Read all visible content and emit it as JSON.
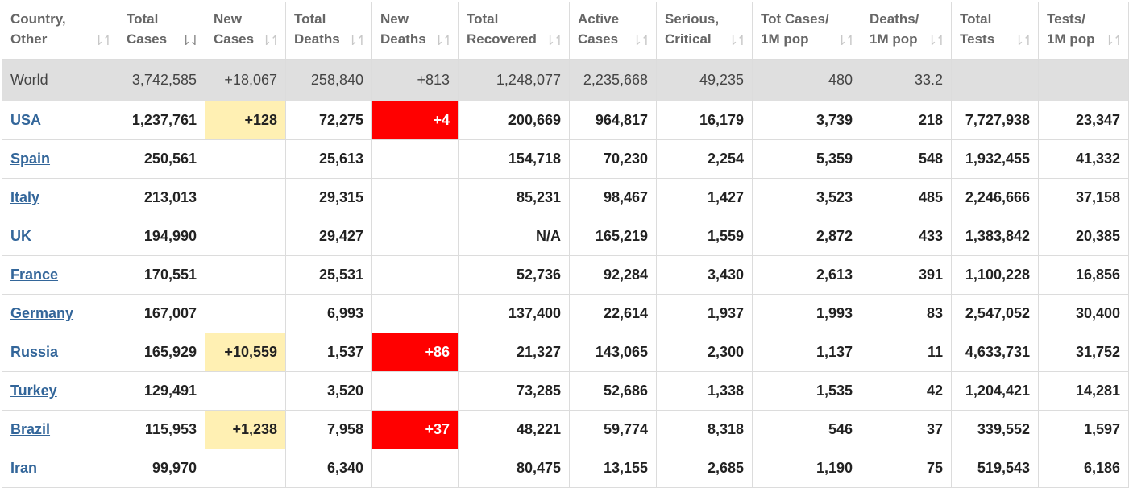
{
  "headers": [
    {
      "label": "Country,\nOther",
      "sort": "⇂↿"
    },
    {
      "label": "Total\nCases",
      "sort": "⇂⇃"
    },
    {
      "label": "New\nCases",
      "sort": "⇂↿"
    },
    {
      "label": "Total\nDeaths",
      "sort": "⇂↿"
    },
    {
      "label": "New\nDeaths",
      "sort": "⇂↿"
    },
    {
      "label": "Total\nRecovered",
      "sort": "⇂↿"
    },
    {
      "label": "Active\nCases",
      "sort": "⇂↿"
    },
    {
      "label": "Serious,\nCritical",
      "sort": "⇂↿"
    },
    {
      "label": "Tot Cases/\n1M pop",
      "sort": "⇂↿"
    },
    {
      "label": "Deaths/\n1M pop",
      "sort": "⇂↿"
    },
    {
      "label": "Total\nTests",
      "sort": "⇂↿"
    },
    {
      "label": "Tests/\n1M pop",
      "sort": "⇂↿"
    }
  ],
  "world": {
    "name": "World",
    "total_cases": "3,742,585",
    "new_cases": "+18,067",
    "total_deaths": "258,840",
    "new_deaths": "+813",
    "total_recovered": "1,248,077",
    "active_cases": "2,235,668",
    "serious_critical": "49,235",
    "cases_per_1m": "480",
    "deaths_per_1m": "33.2",
    "total_tests": "",
    "tests_per_1m": ""
  },
  "rows": [
    {
      "name": "USA",
      "total_cases": "1,237,761",
      "new_cases": "+128",
      "total_deaths": "72,275",
      "new_deaths": "+4",
      "total_recovered": "200,669",
      "active_cases": "964,817",
      "serious_critical": "16,179",
      "cases_per_1m": "3,739",
      "deaths_per_1m": "218",
      "total_tests": "7,727,938",
      "tests_per_1m": "23,347"
    },
    {
      "name": "Spain",
      "total_cases": "250,561",
      "new_cases": "",
      "total_deaths": "25,613",
      "new_deaths": "",
      "total_recovered": "154,718",
      "active_cases": "70,230",
      "serious_critical": "2,254",
      "cases_per_1m": "5,359",
      "deaths_per_1m": "548",
      "total_tests": "1,932,455",
      "tests_per_1m": "41,332"
    },
    {
      "name": "Italy",
      "total_cases": "213,013",
      "new_cases": "",
      "total_deaths": "29,315",
      "new_deaths": "",
      "total_recovered": "85,231",
      "active_cases": "98,467",
      "serious_critical": "1,427",
      "cases_per_1m": "3,523",
      "deaths_per_1m": "485",
      "total_tests": "2,246,666",
      "tests_per_1m": "37,158"
    },
    {
      "name": "UK",
      "total_cases": "194,990",
      "new_cases": "",
      "total_deaths": "29,427",
      "new_deaths": "",
      "total_recovered": "N/A",
      "active_cases": "165,219",
      "serious_critical": "1,559",
      "cases_per_1m": "2,872",
      "deaths_per_1m": "433",
      "total_tests": "1,383,842",
      "tests_per_1m": "20,385"
    },
    {
      "name": "France",
      "total_cases": "170,551",
      "new_cases": "",
      "total_deaths": "25,531",
      "new_deaths": "",
      "total_recovered": "52,736",
      "active_cases": "92,284",
      "serious_critical": "3,430",
      "cases_per_1m": "2,613",
      "deaths_per_1m": "391",
      "total_tests": "1,100,228",
      "tests_per_1m": "16,856"
    },
    {
      "name": "Germany",
      "total_cases": "167,007",
      "new_cases": "",
      "total_deaths": "6,993",
      "new_deaths": "",
      "total_recovered": "137,400",
      "active_cases": "22,614",
      "serious_critical": "1,937",
      "cases_per_1m": "1,993",
      "deaths_per_1m": "83",
      "total_tests": "2,547,052",
      "tests_per_1m": "30,400"
    },
    {
      "name": "Russia",
      "total_cases": "165,929",
      "new_cases": "+10,559",
      "total_deaths": "1,537",
      "new_deaths": "+86",
      "total_recovered": "21,327",
      "active_cases": "143,065",
      "serious_critical": "2,300",
      "cases_per_1m": "1,137",
      "deaths_per_1m": "11",
      "total_tests": "4,633,731",
      "tests_per_1m": "31,752"
    },
    {
      "name": "Turkey",
      "total_cases": "129,491",
      "new_cases": "",
      "total_deaths": "3,520",
      "new_deaths": "",
      "total_recovered": "73,285",
      "active_cases": "52,686",
      "serious_critical": "1,338",
      "cases_per_1m": "1,535",
      "deaths_per_1m": "42",
      "total_tests": "1,204,421",
      "tests_per_1m": "14,281"
    },
    {
      "name": "Brazil",
      "total_cases": "115,953",
      "new_cases": "+1,238",
      "total_deaths": "7,958",
      "new_deaths": "+37",
      "total_recovered": "48,221",
      "active_cases": "59,774",
      "serious_critical": "8,318",
      "cases_per_1m": "546",
      "deaths_per_1m": "37",
      "total_tests": "339,552",
      "tests_per_1m": "1,597"
    },
    {
      "name": "Iran",
      "total_cases": "99,970",
      "new_cases": "",
      "total_deaths": "6,340",
      "new_deaths": "",
      "total_recovered": "80,475",
      "active_cases": "13,155",
      "serious_critical": "2,685",
      "cases_per_1m": "1,190",
      "deaths_per_1m": "75",
      "total_tests": "519,543",
      "tests_per_1m": "6,186"
    }
  ],
  "colors": {
    "new_cases_highlight": "#fff0b3",
    "new_deaths_highlight": "#ff0000",
    "country_link": "#33669a",
    "world_row_bg": "#dfdfdf"
  }
}
